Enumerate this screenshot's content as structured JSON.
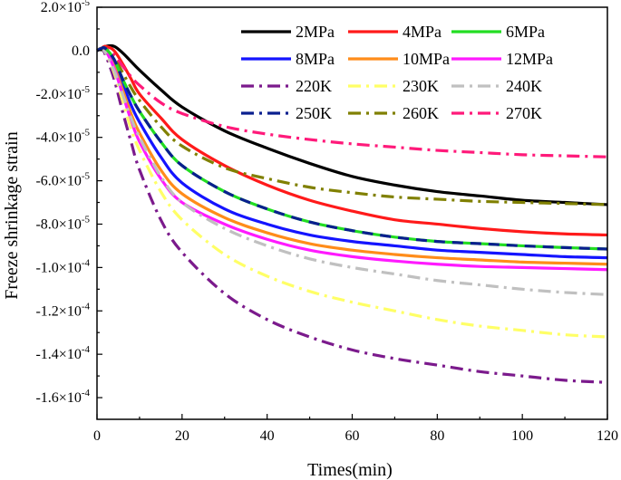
{
  "chart_data": {
    "type": "line",
    "title": "",
    "xlabel": "Times(min)",
    "ylabel": "Freeze shrinkage strain",
    "xlim": [
      0,
      120
    ],
    "ylim": [
      -0.00017,
      2e-05
    ],
    "xticks": [
      0,
      20,
      40,
      60,
      80,
      100,
      120
    ],
    "xtick_labels": [
      "0",
      "20",
      "40",
      "60",
      "80",
      "100",
      "120"
    ],
    "yticks": [
      2e-05,
      0,
      -2e-05,
      -4e-05,
      -6e-05,
      -8e-05,
      -0.0001,
      -0.00012,
      -0.00014,
      -0.00016
    ],
    "ytick_labels": [
      {
        "mant": "2.0×10",
        "exp": "-5"
      },
      {
        "mant": "0.0",
        "exp": ""
      },
      {
        "mant": "-2.0×10",
        "exp": "-5"
      },
      {
        "mant": "-4.0×10",
        "exp": "-5"
      },
      {
        "mant": "-6.0×10",
        "exp": "-5"
      },
      {
        "mant": "-8.0×10",
        "exp": "-5"
      },
      {
        "mant": "-1.0×10",
        "exp": "-4"
      },
      {
        "mant": "-1.2×10",
        "exp": "-4"
      },
      {
        "mant": "-1.4×10",
        "exp": "-4"
      },
      {
        "mant": "-1.6×10",
        "exp": "-4"
      }
    ],
    "legend_position": "top-right",
    "x": [
      0,
      1,
      2,
      4,
      6,
      8,
      10,
      15,
      20,
      30,
      40,
      50,
      60,
      70,
      80,
      90,
      100,
      110,
      120
    ],
    "series": [
      {
        "name": "2MPa",
        "color": "#000000",
        "style": "solid",
        "values": [
          0,
          1e-06,
          2e-06,
          2e-06,
          -1e-06,
          -5e-06,
          -9e-06,
          -1.8e-05,
          -2.6e-05,
          -3.7e-05,
          -4.5e-05,
          -5.2e-05,
          -5.8e-05,
          -6.2e-05,
          -6.5e-05,
          -6.7e-05,
          -6.9e-05,
          -7e-05,
          -7.1e-05
        ]
      },
      {
        "name": "4MPa",
        "color": "#ff1a1a",
        "style": "solid",
        "values": [
          0,
          1e-06,
          2e-06,
          0,
          -6e-06,
          -1.3e-05,
          -2e-05,
          -3.1e-05,
          -4.1e-05,
          -5.3e-05,
          -6.2e-05,
          -6.9e-05,
          -7.4e-05,
          -7.8e-05,
          -8e-05,
          -8.2e-05,
          -8.35e-05,
          -8.45e-05,
          -8.5e-05
        ]
      },
      {
        "name": "6MPa",
        "color": "#22dd22",
        "style": "solid",
        "values": [
          0,
          1e-06,
          1e-06,
          -4e-06,
          -1.3e-05,
          -2.1e-05,
          -2.8e-05,
          -4.2e-05,
          -5.3e-05,
          -6.5e-05,
          -7.3e-05,
          -7.9e-05,
          -8.3e-05,
          -8.6e-05,
          -8.8e-05,
          -8.9e-05,
          -9e-05,
          -9.08e-05,
          -9.15e-05
        ]
      },
      {
        "name": "8MPa",
        "color": "#1414ff",
        "style": "solid",
        "values": [
          0,
          1e-06,
          1e-06,
          -5e-06,
          -1.5e-05,
          -2.5e-05,
          -3.3e-05,
          -4.9e-05,
          -6.1e-05,
          -7.3e-05,
          -8e-05,
          -8.5e-05,
          -8.8e-05,
          -9e-05,
          -9.2e-05,
          -9.3e-05,
          -9.4e-05,
          -9.5e-05,
          -9.55e-05
        ]
      },
      {
        "name": "10MPa",
        "color": "#ff8c1a",
        "style": "solid",
        "values": [
          0,
          1e-06,
          0,
          -7e-06,
          -1.8e-05,
          -2.9e-05,
          -3.8e-05,
          -5.5e-05,
          -6.6e-05,
          -7.7e-05,
          -8.4e-05,
          -8.9e-05,
          -9.2e-05,
          -9.4e-05,
          -9.55e-05,
          -9.65e-05,
          -9.75e-05,
          -9.8e-05,
          -9.85e-05
        ]
      },
      {
        "name": "12MPa",
        "color": "#ff1aff",
        "style": "solid",
        "values": [
          0,
          1e-06,
          0,
          -8e-06,
          -2e-05,
          -3.2e-05,
          -4.2e-05,
          -5.9e-05,
          -7e-05,
          -8e-05,
          -8.7e-05,
          -9.2e-05,
          -9.5e-05,
          -9.7e-05,
          -9.85e-05,
          -9.95e-05,
          -0.0001,
          -0.0001005,
          -0.000101
        ]
      },
      {
        "name": "220K",
        "color": "#7b1a8c",
        "style": "dashdot",
        "values": [
          0,
          1e-06,
          -2e-06,
          -1.3e-05,
          -2.8e-05,
          -4.2e-05,
          -5.5e-05,
          -7.8e-05,
          -9.3e-05,
          -0.000112,
          -0.000124,
          -0.000132,
          -0.000138,
          -0.000142,
          -0.000145,
          -0.000148,
          -0.00015,
          -0.000152,
          -0.000153
        ]
      },
      {
        "name": "230K",
        "color": "#ffff66",
        "style": "dashdot",
        "values": [
          0,
          1e-06,
          -1e-06,
          -1e-05,
          -2.3e-05,
          -3.6e-05,
          -4.6e-05,
          -6.5e-05,
          -7.8e-05,
          -9.4e-05,
          -0.000104,
          -0.000111,
          -0.000116,
          -0.00012,
          -0.000124,
          -0.000127,
          -0.000129,
          -0.000131,
          -0.000132
        ]
      },
      {
        "name": "240K",
        "color": "#c0c0c0",
        "style": "dashdot",
        "values": [
          0,
          1e-06,
          -1e-06,
          -9e-06,
          -2e-05,
          -3.1e-05,
          -4e-05,
          -5.8e-05,
          -7e-05,
          -8.2e-05,
          -9e-05,
          -9.6e-05,
          -0.0001,
          -0.000103,
          -0.000106,
          -0.000108,
          -0.00011,
          -0.0001115,
          -0.0001125
        ]
      },
      {
        "name": "250K",
        "color": "#0a1f8f",
        "style": "dashdot",
        "values": [
          0,
          1e-06,
          1e-06,
          -4e-06,
          -1.3e-05,
          -2.1e-05,
          -2.8e-05,
          -4.2e-05,
          -5.3e-05,
          -6.5e-05,
          -7.3e-05,
          -7.9e-05,
          -8.3e-05,
          -8.6e-05,
          -8.8e-05,
          -8.9e-05,
          -9e-05,
          -9.08e-05,
          -9.15e-05
        ]
      },
      {
        "name": "260K",
        "color": "#808000",
        "style": "dashdot",
        "values": [
          0,
          1e-06,
          1e-06,
          -3e-06,
          -1e-05,
          -1.7e-05,
          -2.3e-05,
          -3.5e-05,
          -4.4e-05,
          -5.4e-05,
          -5.9e-05,
          -6.3e-05,
          -6.55e-05,
          -6.75e-05,
          -6.85e-05,
          -6.95e-05,
          -7e-05,
          -7.05e-05,
          -7.1e-05
        ]
      },
      {
        "name": "270K",
        "color": "#ff1a7a",
        "style": "dashdot",
        "values": [
          0,
          1e-06,
          1e-06,
          -2e-06,
          -7e-06,
          -1.2e-05,
          -1.6e-05,
          -2.4e-05,
          -2.9e-05,
          -3.5e-05,
          -3.85e-05,
          -4.1e-05,
          -4.3e-05,
          -4.45e-05,
          -4.6e-05,
          -4.7e-05,
          -4.8e-05,
          -4.85e-05,
          -4.9e-05
        ]
      }
    ]
  }
}
